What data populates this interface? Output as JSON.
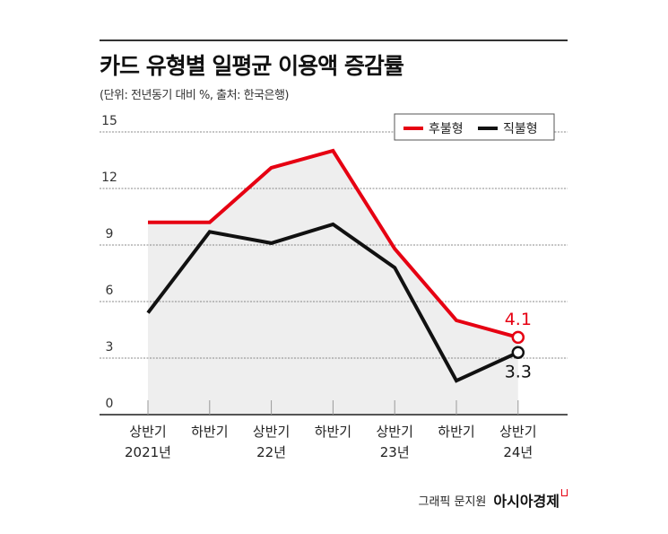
{
  "title": "카드 유형별 일평균 이용액 증감률",
  "subtitle": "(단위: 전년동기 대비 %, 출처: 한국은행)",
  "credit": {
    "graphic": "그래픽 문지원",
    "brand": "아시아경제"
  },
  "colors": {
    "후불형": "#e60012",
    "직불형": "#111111",
    "area_fill": "#eeeeee"
  },
  "chart_data": {
    "type": "line",
    "categories": [
      [
        "상반기",
        "2021년"
      ],
      [
        "하반기",
        ""
      ],
      [
        "상반기",
        "22년"
      ],
      [
        "하반기",
        ""
      ],
      [
        "상반기",
        "23년"
      ],
      [
        "하반기",
        ""
      ],
      [
        "상반기",
        "24년"
      ]
    ],
    "series": [
      {
        "name": "후불형",
        "values": [
          10.2,
          10.2,
          13.1,
          14.0,
          8.8,
          5.0,
          4.1
        ]
      },
      {
        "name": "직불형",
        "values": [
          5.4,
          9.7,
          9.1,
          10.1,
          7.8,
          1.8,
          3.3
        ]
      }
    ],
    "data_labels": [
      {
        "series": "후불형",
        "text": "4.1"
      },
      {
        "series": "직불형",
        "text": "3.3"
      }
    ],
    "yticks": [
      "0",
      "3",
      "6",
      "9",
      "12",
      "15"
    ],
    "ylim": [
      0,
      15
    ],
    "grid": true,
    "legend": "top-right",
    "shaded_area_under": "후불형"
  }
}
